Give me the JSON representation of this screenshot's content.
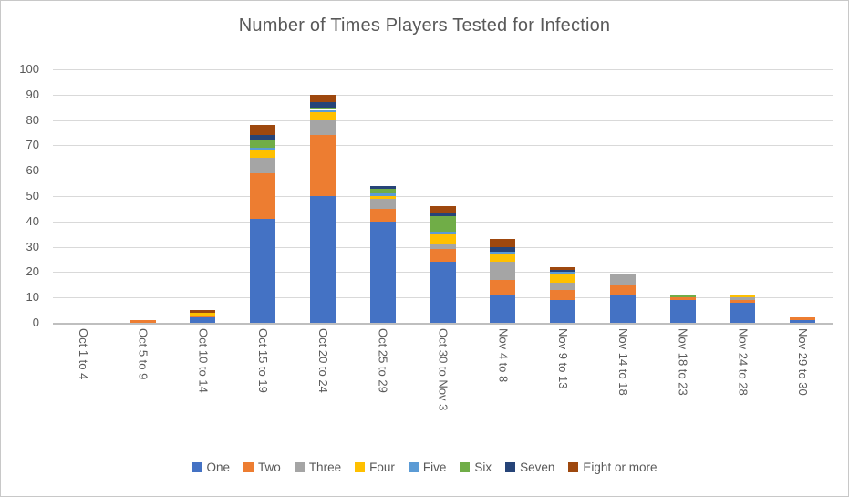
{
  "title": "Number of Times Players Tested for Infection",
  "chart_data": {
    "type": "bar",
    "stacked": true,
    "title": "Number of Times Players Tested for Infection",
    "xlabel": "",
    "ylabel": "",
    "ylim": [
      0,
      100
    ],
    "ytick_step": 10,
    "grid": true,
    "legend_position": "bottom",
    "grid_color": "#d9d9d9",
    "axis_color": "#bfbfbf",
    "label_color": "#595959",
    "categories": [
      "Oct 1 to 4",
      "Oct 5 to 9",
      "Oct 10 to 14",
      "Oct 15 to 19",
      "Oct 20 to 24",
      "Oct 25 to 29",
      "Oct 30 to Nov 3",
      "Nov 4 to 8",
      "Nov 9 to 13",
      "Nov 14 to 18",
      "Nov 18 to 23",
      "Nov 24 to 28",
      "Nov 29 to 30"
    ],
    "series": [
      {
        "name": "One",
        "color": "#4472C4",
        "values": [
          0,
          0,
          2,
          41,
          50,
          40,
          24,
          11,
          9,
          11,
          9,
          8,
          1
        ]
      },
      {
        "name": "Two",
        "color": "#ED7D31",
        "values": [
          0,
          1,
          1,
          18,
          24,
          5,
          5,
          6,
          4,
          4,
          1,
          1,
          1
        ]
      },
      {
        "name": "Three",
        "color": "#A5A5A5",
        "values": [
          0,
          0,
          0,
          6,
          6,
          4,
          2,
          7,
          3,
          4,
          0,
          1,
          0
        ]
      },
      {
        "name": "Four",
        "color": "#FFC000",
        "values": [
          0,
          0,
          1,
          3,
          3,
          1,
          4,
          3,
          3,
          0,
          0,
          1,
          0
        ]
      },
      {
        "name": "Five",
        "color": "#5B9BD5",
        "values": [
          0,
          0,
          0,
          1,
          1,
          1,
          1,
          1,
          1,
          0,
          0,
          0,
          0
        ]
      },
      {
        "name": "Six",
        "color": "#70AD47",
        "values": [
          0,
          0,
          0,
          3,
          1,
          2,
          6,
          0,
          0,
          0,
          1,
          0,
          0
        ]
      },
      {
        "name": "Seven",
        "color": "#264478",
        "values": [
          0,
          0,
          0,
          2,
          2,
          1,
          1,
          2,
          1,
          0,
          0,
          0,
          0
        ]
      },
      {
        "name": "Eight or more",
        "color": "#9E480E",
        "values": [
          0,
          0,
          1,
          4,
          3,
          0,
          3,
          3,
          1,
          0,
          0,
          0,
          0
        ]
      }
    ],
    "totals": [
      0,
      1,
      5,
      78,
      90,
      54,
      46,
      33,
      22,
      19,
      11,
      11,
      2
    ]
  }
}
